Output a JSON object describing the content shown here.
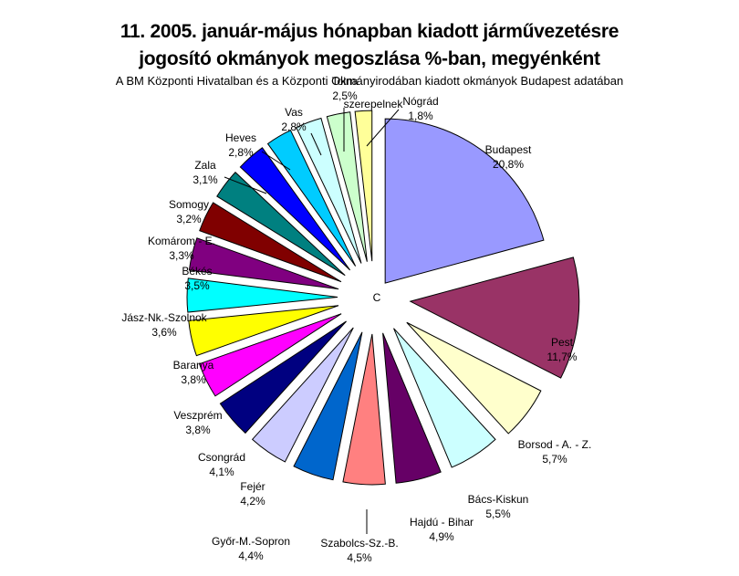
{
  "chart_data": {
    "type": "pie",
    "title_line1": "11. 2005. január-május hónapban kiadott járművezetésre",
    "title_line2": "jogosító okmányok megoszlása %-ban, megyénként",
    "subtitle": "A BM Központi Hivatalban és a Központi Okmányirodában kiadott okmányok Budapest adatában",
    "center_label": "C",
    "slices": [
      {
        "label": "Budapest",
        "value": 20.8,
        "value_text": "20,8%",
        "color": "#9999ff"
      },
      {
        "label": "Pest",
        "value": 11.7,
        "value_text": "11,7%",
        "color": "#993366"
      },
      {
        "label": "Borsod - A. - Z.",
        "value": 5.7,
        "value_text": "5,7%",
        "color": "#ffffcc"
      },
      {
        "label": "Bács-Kiskun",
        "value": 5.5,
        "value_text": "5,5%",
        "color": "#ccffff"
      },
      {
        "label": "Hajdú - Bihar",
        "value": 4.9,
        "value_text": "4,9%",
        "color": "#660066"
      },
      {
        "label": "Szabolcs-Sz.-B.",
        "value": 4.5,
        "value_text": "4,5%",
        "color": "#ff8080"
      },
      {
        "label": "Győr-M.-Sopron",
        "value": 4.4,
        "value_text": "4,4%",
        "color": "#0066cc"
      },
      {
        "label": "Fejér",
        "value": 4.2,
        "value_text": "4,2%",
        "color": "#ccccff"
      },
      {
        "label": "Csongrád",
        "value": 4.1,
        "value_text": "4,1%",
        "color": "#000080"
      },
      {
        "label": "Veszprém",
        "value": 3.8,
        "value_text": "3,8%",
        "color": "#ff00ff"
      },
      {
        "label": "Baranya",
        "value": 3.8,
        "value_text": "3,8%",
        "color": "#ffff00"
      },
      {
        "label": "Jász-Nk.-Szolnok",
        "value": 3.6,
        "value_text": "3,6%",
        "color": "#00ffff"
      },
      {
        "label": "Békés",
        "value": 3.5,
        "value_text": "3,5%",
        "color": "#800080"
      },
      {
        "label": "Komárom - E.",
        "value": 3.3,
        "value_text": "3,3%",
        "color": "#800000"
      },
      {
        "label": "Somogy",
        "value": 3.2,
        "value_text": "3,2%",
        "color": "#008080"
      },
      {
        "label": "Zala",
        "value": 3.1,
        "value_text": "3,1%",
        "color": "#0000ff"
      },
      {
        "label": "Heves",
        "value": 2.8,
        "value_text": "2,8%",
        "color": "#00ccff"
      },
      {
        "label": "Vas",
        "value": 2.8,
        "value_text": "2,8%",
        "color": "#ccffff"
      },
      {
        "label": "Tolna",
        "value": 2.5,
        "value_text": "2,5%",
        "color": "#ccffcc"
      },
      {
        "label": "Nógrád",
        "value": 1.8,
        "value_text": "1,8%",
        "color": "#ffff99"
      }
    ],
    "extra_labels": [
      "szerepelnek"
    ]
  }
}
